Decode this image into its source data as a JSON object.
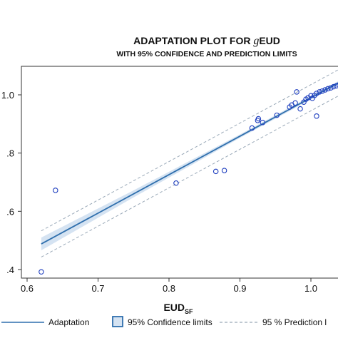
{
  "chart_data": {
    "type": "scatter",
    "title_main": "ADAPTATION PLOT FOR ",
    "title_italic": "g",
    "title_suffix": "EUD",
    "subtitle": "WITH 95% CONFIDENCE AND PREDICTION LIMITS",
    "xlabel_main": "EUD",
    "xlabel_sub": "SF",
    "xlim": [
      0.6,
      1.04
    ],
    "ylim": [
      0.39,
      1.1
    ],
    "x_ticks": [
      0.6,
      0.7,
      0.8,
      0.9,
      1.0
    ],
    "x_tick_labels": [
      "0.6",
      "0.7",
      "0.8",
      "0.9",
      "1.0"
    ],
    "y_ticks": [
      0.4,
      0.6,
      0.8,
      1.0
    ],
    "y_tick_labels": [
      ".4",
      ".6",
      ".8",
      "1.0"
    ],
    "fit_line": {
      "x": [
        0.62,
        1.04
      ],
      "y": [
        0.488,
        1.043
      ]
    },
    "confidence_band": {
      "x": [
        0.62,
        0.75,
        0.9,
        1.04
      ],
      "half_width": [
        0.022,
        0.012,
        0.006,
        0.006
      ]
    },
    "prediction_band_offset": 0.045,
    "points": [
      {
        "x": 0.62,
        "y": 0.392
      },
      {
        "x": 0.64,
        "y": 0.672
      },
      {
        "x": 0.81,
        "y": 0.697
      },
      {
        "x": 0.866,
        "y": 0.737
      },
      {
        "x": 0.878,
        "y": 0.74
      },
      {
        "x": 0.917,
        "y": 0.886
      },
      {
        "x": 0.925,
        "y": 0.912
      },
      {
        "x": 0.926,
        "y": 0.918
      },
      {
        "x": 0.932,
        "y": 0.905
      },
      {
        "x": 0.952,
        "y": 0.93
      },
      {
        "x": 0.97,
        "y": 0.958
      },
      {
        "x": 0.973,
        "y": 0.965
      },
      {
        "x": 0.978,
        "y": 0.972
      },
      {
        "x": 0.98,
        "y": 1.01
      },
      {
        "x": 0.985,
        "y": 0.952
      },
      {
        "x": 0.99,
        "y": 0.975
      },
      {
        "x": 0.993,
        "y": 0.985
      },
      {
        "x": 0.996,
        "y": 0.99
      },
      {
        "x": 1.0,
        "y": 0.997
      },
      {
        "x": 1.002,
        "y": 0.988
      },
      {
        "x": 1.005,
        "y": 0.998
      },
      {
        "x": 1.008,
        "y": 0.927
      },
      {
        "x": 1.008,
        "y": 1.005
      },
      {
        "x": 1.012,
        "y": 1.01
      },
      {
        "x": 1.016,
        "y": 1.013
      },
      {
        "x": 1.02,
        "y": 1.017
      },
      {
        "x": 1.024,
        "y": 1.021
      },
      {
        "x": 1.028,
        "y": 1.024
      },
      {
        "x": 1.032,
        "y": 1.028
      },
      {
        "x": 1.036,
        "y": 1.031
      },
      {
        "x": 1.04,
        "y": 1.034
      }
    ],
    "legend": [
      {
        "type": "line",
        "label": "Adaptation"
      },
      {
        "type": "box",
        "label": "95% Confidence limits"
      },
      {
        "type": "dashed",
        "label": "95 % Prediction l"
      }
    ],
    "colors": {
      "line": "#2f6fad",
      "band_fill": "#d5e3f2",
      "prediction": "#9aa9b8",
      "points": "#1f3fbf",
      "axis": "#333333"
    }
  }
}
